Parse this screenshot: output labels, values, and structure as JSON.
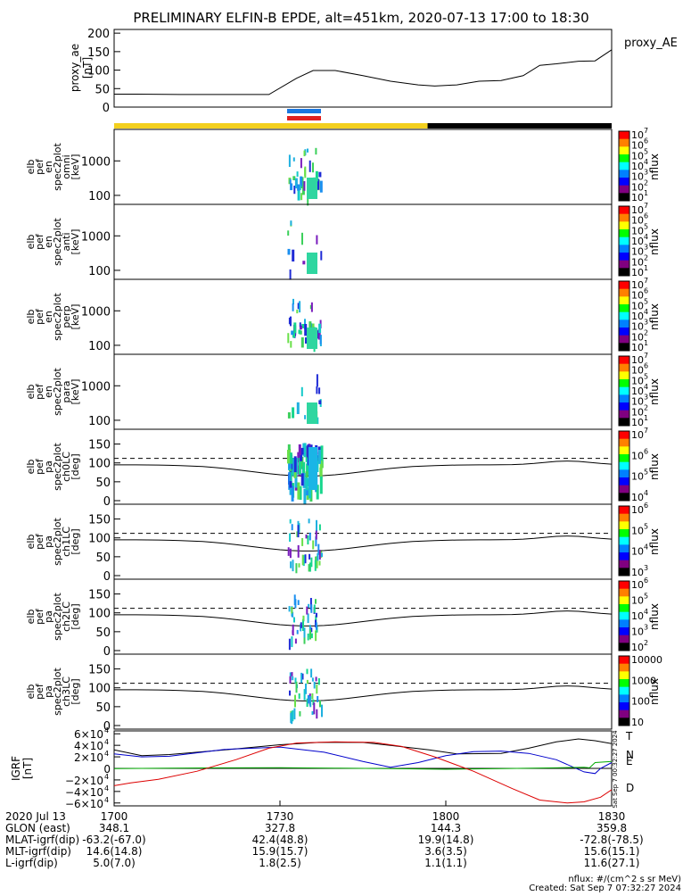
{
  "title": "PRELIMINARY ELFIN-B EPDE, alt=451km, 2020-07-13 17:00 to 18:30",
  "chart_data": [
    {
      "type": "line",
      "name": "proxy_ae",
      "ylabel": [
        "proxy_ae",
        "[nT]"
      ],
      "right_label": "proxy_AE",
      "ylim": [
        0,
        210
      ],
      "yticks": [
        "200",
        "150",
        "100",
        "50",
        "0"
      ],
      "ytick_values": [
        200,
        150,
        100,
        50,
        0
      ],
      "x_minutes": [
        0,
        4,
        12,
        20,
        28,
        33,
        36,
        40,
        45,
        50,
        55,
        58,
        62,
        66,
        70,
        74,
        77,
        80,
        84,
        87,
        90
      ],
      "values": [
        35,
        35,
        34,
        34,
        34,
        78,
        99,
        99,
        85,
        70,
        60,
        57,
        60,
        70,
        72,
        85,
        113,
        117,
        124,
        125,
        155
      ]
    },
    {
      "type": "heatmap",
      "name": "elb pef en spec2plot omni",
      "ylabel": [
        "elb",
        "pef",
        "en",
        "spec2plot",
        "omni",
        "[keV]"
      ],
      "yticks": [
        "1000",
        "100"
      ],
      "colorbar": {
        "label": "nflux",
        "ticks": [
          "10",
          "10",
          "10",
          "10",
          "10",
          "10",
          "10"
        ],
        "exponents": [
          "7",
          "6",
          "5",
          "4",
          "3",
          "2",
          "1"
        ]
      }
    },
    {
      "type": "heatmap",
      "name": "elb pef en spec2plot anti",
      "ylabel": [
        "elb",
        "pef",
        "en",
        "spec2plot",
        "anti",
        "[keV]"
      ],
      "yticks": [
        "1000",
        "100"
      ],
      "colorbar": {
        "label": "nflux",
        "ticks": [
          "10",
          "10",
          "10",
          "10",
          "10",
          "10",
          "10"
        ],
        "exponents": [
          "7",
          "6",
          "5",
          "4",
          "3",
          "2",
          "1"
        ]
      }
    },
    {
      "type": "heatmap",
      "name": "elb pef en spec2plot perp",
      "ylabel": [
        "elb",
        "pef",
        "en",
        "spec2plot",
        "perp",
        "[keV]"
      ],
      "yticks": [
        "1000",
        "100"
      ],
      "colorbar": {
        "label": "nflux",
        "ticks": [
          "10",
          "10",
          "10",
          "10",
          "10",
          "10",
          "10"
        ],
        "exponents": [
          "7",
          "6",
          "5",
          "4",
          "3",
          "2",
          "1"
        ]
      }
    },
    {
      "type": "heatmap",
      "name": "elb pef en spec2plot para",
      "ylabel": [
        "elb",
        "pef",
        "en",
        "spec2plot",
        "para",
        "[keV]"
      ],
      "yticks": [
        "1000",
        "100"
      ],
      "colorbar": {
        "label": "nflux",
        "ticks": [
          "10",
          "10",
          "10",
          "10",
          "10",
          "10",
          "10"
        ],
        "exponents": [
          "7",
          "6",
          "5",
          "4",
          "3",
          "2",
          "1"
        ]
      }
    },
    {
      "type": "heatmap",
      "name": "elb pef pa spec2plot ch0LC",
      "ylabel": [
        "elb",
        "pef",
        "pa",
        "spec2plot",
        "ch0LC",
        "[deg]"
      ],
      "yticks": [
        "150",
        "100",
        "50",
        "0"
      ],
      "colorbar": {
        "label": "nflux",
        "ticks": [
          "10",
          "10",
          "10",
          "10"
        ],
        "exponents": [
          "7",
          "6",
          "5",
          "4"
        ]
      }
    },
    {
      "type": "heatmap",
      "name": "elb pef pa spec2plot ch1LC",
      "ylabel": [
        "elb",
        "pef",
        "pa",
        "spec2plot",
        "ch1LC",
        "[deg]"
      ],
      "yticks": [
        "150",
        "100",
        "50",
        "0"
      ],
      "colorbar": {
        "label": "nflux",
        "ticks": [
          "10",
          "10",
          "10",
          "10"
        ],
        "exponents": [
          "6",
          "5",
          "4",
          "3"
        ]
      }
    },
    {
      "type": "heatmap",
      "name": "elb pef pa spec2plot ch2LC",
      "ylabel": [
        "elb",
        "pef",
        "pa",
        "spec2plot",
        "ch2LC",
        "[deg]"
      ],
      "yticks": [
        "150",
        "100",
        "50",
        "0"
      ],
      "colorbar": {
        "label": "nflux",
        "ticks": [
          "10",
          "10",
          "10",
          "10",
          "10"
        ],
        "exponents": [
          "6",
          "5",
          "4",
          "3",
          "2"
        ]
      }
    },
    {
      "type": "heatmap",
      "name": "elb pef pa spec2plot ch3LC",
      "ylabel": [
        "elb",
        "pef",
        "pa",
        "spec2plot",
        "ch3LC",
        "[deg]"
      ],
      "yticks": [
        "150",
        "100",
        "50",
        "0"
      ],
      "colorbar": {
        "label": "nflux",
        "ticks": [
          "10000",
          "1000",
          "100",
          "10"
        ],
        "exponents": [
          "",
          "",
          "",
          ""
        ]
      }
    },
    {
      "type": "line",
      "name": "IGRF",
      "ylabel": [
        "IGRF",
        "[nT]"
      ],
      "ylim": [
        -65000,
        65000
      ],
      "yticks": [
        {
          "mant": "6×10",
          "exp": "4",
          "v": 60000
        },
        {
          "mant": "4×10",
          "exp": "4",
          "v": 40000
        },
        {
          "mant": "2×10",
          "exp": "4",
          "v": 20000
        },
        {
          "mant": "0",
          "exp": "",
          "v": 0
        },
        {
          "mant": "−2×10",
          "exp": "4",
          "v": -20000
        },
        {
          "mant": "−4×10",
          "exp": "4",
          "v": -40000
        },
        {
          "mant": "−6×10",
          "exp": "4",
          "v": -60000
        }
      ],
      "series": [
        {
          "name": "T",
          "color": "#000000",
          "x_minutes": [
            0,
            5,
            10,
            20,
            30,
            37,
            45,
            50,
            57,
            62,
            70,
            75,
            80,
            84,
            87,
            90
          ],
          "values": [
            32000,
            22000,
            24000,
            32000,
            41000,
            45000,
            45000,
            40000,
            32000,
            25000,
            26000,
            35000,
            46000,
            51000,
            48000,
            43000
          ]
        },
        {
          "name": "N",
          "color": "#0000cc",
          "x_minutes": [
            0,
            5,
            10,
            20,
            30,
            38,
            45,
            50,
            55,
            60,
            65,
            70,
            75,
            80,
            85,
            87,
            88,
            90
          ],
          "values": [
            25000,
            20000,
            21000,
            33000,
            37000,
            28000,
            12000,
            2000,
            10000,
            22000,
            29000,
            30000,
            26000,
            15000,
            -6000,
            -9000,
            0,
            10000
          ]
        },
        {
          "name": "E",
          "color": "#00aa00",
          "x_minutes": [
            0,
            10,
            20,
            30,
            40,
            50,
            60,
            70,
            80,
            85,
            86,
            87,
            90
          ],
          "values": [
            -500,
            500,
            1000,
            1200,
            500,
            -500,
            -1500,
            -500,
            1000,
            2000,
            1000,
            10000,
            12000
          ]
        },
        {
          "name": "D",
          "color": "#dd0000",
          "x_minutes": [
            0,
            3,
            8,
            15,
            22,
            28,
            33,
            40,
            47,
            52,
            58,
            65,
            72,
            77,
            82,
            85,
            88,
            90
          ],
          "values": [
            -30000,
            -25000,
            -19000,
            -5000,
            15000,
            35000,
            44000,
            46000,
            45000,
            38000,
            20000,
            -5000,
            -35000,
            -55000,
            -60000,
            -58000,
            -50000,
            -37000
          ]
        }
      ]
    }
  ],
  "time_axis": {
    "labels": [
      "1700",
      "1730",
      "1800",
      "1830"
    ],
    "row_labels": [
      "2020 Jul 13",
      "GLON (east)",
      "MLAT-igrf(dip)",
      "MLT-igrf(dip)",
      "L-igrf(dip)"
    ],
    "columns": [
      [
        "1700",
        "348.1",
        "-63.2(-67.0)",
        "14.6(14.8)",
        "5.0(7.0)"
      ],
      [
        "1730",
        "327.8",
        "42.4(48.8)",
        "15.9(15.7)",
        "1.8(2.5)"
      ],
      [
        "1800",
        "144.3",
        "19.9(14.8)",
        "3.6(3.5)",
        "1.1(1.1)"
      ],
      [
        "1830",
        "359.8",
        "-72.8(-78.5)",
        "15.6(15.1)",
        "11.6(27.1)"
      ]
    ]
  },
  "footer": {
    "units": "nflux: #/(cm^2 s sr MeV)",
    "created": "Created: Sat Sep  7 07:32:27 2024",
    "side_stamp": "Sat Sep  7 00:32:27 2024"
  }
}
